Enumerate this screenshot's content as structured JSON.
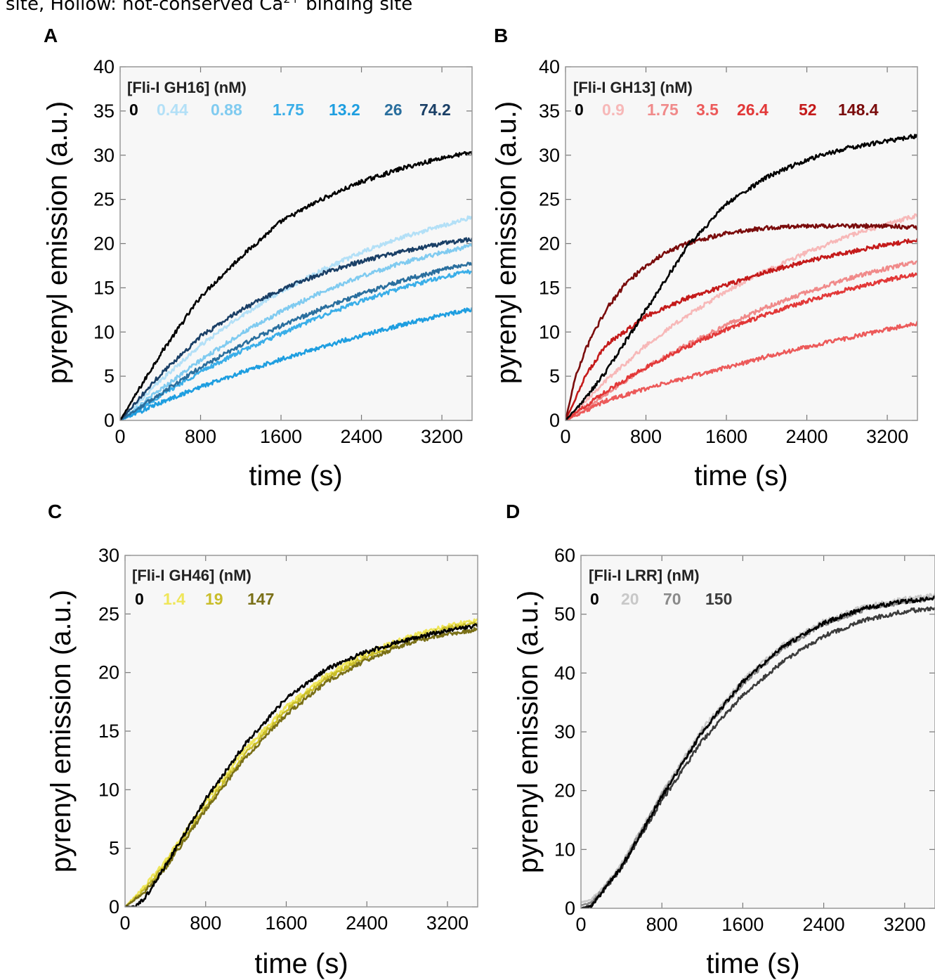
{
  "caption_fragment": "site, Hollow: not-conserved Ca",
  "caption_superscript": "2+",
  "caption_tail": " binding site",
  "colors": {
    "panel_background": "#f7f7f7",
    "frame": "#999999",
    "control_trace": "#000000"
  },
  "chart_data": [
    {
      "panel": "A",
      "type": "line",
      "xlabel": "time (s)",
      "ylabel": "pyrenyl emission (a.u.)",
      "xlim": [
        0,
        3500
      ],
      "ylim": [
        0,
        40
      ],
      "xticks": [
        0,
        800,
        1600,
        2400,
        3200
      ],
      "yticks": [
        0,
        5,
        10,
        15,
        20,
        25,
        30,
        35,
        40
      ],
      "legend_title": "[Fli-I GH16]  (nM)",
      "legend_placement": "top-left",
      "series": [
        {
          "name": "0",
          "color": "#000000",
          "x": [
            0,
            400,
            800,
            1200,
            1600,
            2000,
            2400,
            2800,
            3200,
            3500
          ],
          "y": [
            0,
            7.5,
            14,
            18.5,
            22.5,
            25,
            27,
            28.5,
            29.7,
            30.3
          ]
        },
        {
          "name": "0.44",
          "color": "#b3e0f7",
          "x": [
            0,
            400,
            800,
            1200,
            1600,
            2000,
            2400,
            2800,
            3200,
            3500
          ],
          "y": [
            0,
            4.5,
            8.5,
            11.8,
            14.6,
            17,
            19,
            20.7,
            22,
            23
          ]
        },
        {
          "name": "0.88",
          "color": "#80cbf0",
          "x": [
            0,
            400,
            800,
            1200,
            1600,
            2000,
            2400,
            2800,
            3200,
            3500
          ],
          "y": [
            0,
            3.5,
            6.8,
            9.8,
            12.3,
            14.5,
            16.3,
            17.8,
            19,
            19.8
          ]
        },
        {
          "name": "1.75",
          "color": "#3aaee8",
          "x": [
            0,
            400,
            800,
            1200,
            1600,
            2000,
            2400,
            2800,
            3200,
            3500
          ],
          "y": [
            0,
            2.8,
            5.5,
            7.8,
            9.8,
            11.8,
            13.5,
            15,
            16.2,
            16.9
          ]
        },
        {
          "name": "13.2",
          "color": "#1e9ee0",
          "x": [
            0,
            400,
            800,
            1200,
            1600,
            2000,
            2400,
            2800,
            3200,
            3500
          ],
          "y": [
            0,
            2,
            3.8,
            5.4,
            6.9,
            8.3,
            9.6,
            10.8,
            11.9,
            12.6
          ]
        },
        {
          "name": "26",
          "color": "#2a6f9e",
          "x": [
            0,
            400,
            800,
            1200,
            1600,
            2000,
            2400,
            2800,
            3200,
            3500
          ],
          "y": [
            0,
            3,
            6,
            8.5,
            10.7,
            12.6,
            14.3,
            15.8,
            17,
            17.8
          ]
        },
        {
          "name": "74.2",
          "color": "#1a3f66",
          "x": [
            0,
            400,
            800,
            1200,
            1600,
            2000,
            2400,
            2800,
            3200,
            3500
          ],
          "y": [
            0,
            5.2,
            9.5,
            12.5,
            14.8,
            16.6,
            18,
            19.1,
            20,
            20.5
          ]
        }
      ]
    },
    {
      "panel": "B",
      "type": "line",
      "xlabel": "time (s)",
      "ylabel": "pyrenyl emission (a.u.)",
      "xlim": [
        0,
        3500
      ],
      "ylim": [
        0,
        40
      ],
      "xticks": [
        0,
        800,
        1600,
        2400,
        3200
      ],
      "yticks": [
        0,
        5,
        10,
        15,
        20,
        25,
        30,
        35,
        40
      ],
      "legend_title": "[Fli-I GH13]  (nM)",
      "legend_placement": "top-left",
      "series": [
        {
          "name": "0",
          "color": "#000000",
          "x": [
            0,
            200,
            400,
            600,
            800,
            1000,
            1200,
            1600,
            2000,
            2400,
            2800,
            3200,
            3500
          ],
          "y": [
            0,
            2.5,
            5.5,
            9,
            12.5,
            16,
            19.5,
            24.5,
            27.5,
            29.5,
            30.8,
            31.6,
            32.2
          ]
        },
        {
          "name": "0.9",
          "color": "#f7b8b8",
          "x": [
            0,
            400,
            800,
            1200,
            1600,
            2000,
            2400,
            2800,
            3200,
            3500
          ],
          "y": [
            0,
            4.5,
            8.5,
            11.8,
            14.6,
            17,
            19,
            20.8,
            22.2,
            23.2
          ]
        },
        {
          "name": "1.75",
          "color": "#f08a8a",
          "x": [
            0,
            400,
            800,
            1200,
            1600,
            2000,
            2400,
            2800,
            3200,
            3500
          ],
          "y": [
            0,
            3,
            6,
            8.5,
            10.8,
            12.8,
            14.5,
            16,
            17.2,
            18
          ]
        },
        {
          "name": "3.5",
          "color": "#ec5a5a",
          "x": [
            0,
            400,
            800,
            1200,
            1600,
            2000,
            2400,
            2800,
            3200,
            3500
          ],
          "y": [
            0,
            2.2,
            3.6,
            4.8,
            6,
            7.2,
            8.3,
            9.3,
            10.3,
            11
          ]
        },
        {
          "name": "26.4",
          "color": "#e23838",
          "x": [
            0,
            400,
            800,
            1200,
            1600,
            2000,
            2400,
            2800,
            3200,
            3500
          ],
          "y": [
            0,
            3.3,
            6,
            8.3,
            10.3,
            12,
            13.5,
            14.8,
            15.9,
            16.6
          ]
        },
        {
          "name": "52",
          "color": "#c41a1a",
          "x": [
            0,
            200,
            400,
            800,
            1200,
            1600,
            2000,
            2400,
            2800,
            3200,
            3500
          ],
          "y": [
            0,
            5,
            8.5,
            11.8,
            13.8,
            15.3,
            16.8,
            18,
            19,
            19.9,
            20.4
          ]
        },
        {
          "name": "148.4",
          "color": "#7a0c0c",
          "x": [
            0,
            100,
            200,
            400,
            600,
            800,
            1000,
            1200,
            1600,
            2000,
            2400,
            2800,
            3200,
            3500
          ],
          "y": [
            0,
            5,
            8,
            12.5,
            15.5,
            17.5,
            19,
            20,
            21.2,
            21.8,
            22,
            22,
            22,
            21.8
          ]
        }
      ]
    },
    {
      "panel": "C",
      "type": "line",
      "xlabel": "time (s)",
      "ylabel": "pyrenyl emission (a.u.)",
      "xlim": [
        0,
        3500
      ],
      "ylim": [
        0,
        30
      ],
      "xticks": [
        0,
        800,
        1600,
        2400,
        3200
      ],
      "yticks": [
        0,
        5,
        10,
        15,
        20,
        25,
        30
      ],
      "legend_title": "[Fli-I GH46]  (nM)",
      "legend_placement": "top-left",
      "series": [
        {
          "name": "0",
          "color": "#000000",
          "x": [
            0,
            100,
            200,
            400,
            800,
            1200,
            1600,
            2000,
            2400,
            2800,
            3200,
            3500
          ],
          "y": [
            0,
            0,
            0.8,
            3.5,
            9.2,
            14,
            17.8,
            20.3,
            21.8,
            22.8,
            23.6,
            24
          ]
        },
        {
          "name": "1.4",
          "color": "#efe65a",
          "x": [
            0,
            200,
            400,
            800,
            1200,
            1600,
            2000,
            2400,
            2800,
            3200,
            3500
          ],
          "y": [
            0,
            1.8,
            3.9,
            9,
            13.5,
            17.1,
            19.8,
            21.7,
            23,
            24,
            24.5
          ]
        },
        {
          "name": "19",
          "color": "#c9bd2a",
          "x": [
            0,
            200,
            400,
            800,
            1200,
            1600,
            2000,
            2400,
            2800,
            3200,
            3500
          ],
          "y": [
            0,
            1.5,
            3.6,
            8.6,
            13.1,
            16.8,
            19.5,
            21.4,
            22.8,
            23.8,
            24.2
          ]
        },
        {
          "name": "147",
          "color": "#7a7018",
          "x": [
            0,
            200,
            400,
            800,
            1200,
            1600,
            2000,
            2400,
            2800,
            3200,
            3500
          ],
          "y": [
            0,
            1.3,
            3.3,
            8.3,
            12.8,
            16.4,
            19.2,
            21.1,
            22.5,
            23.3,
            23.7
          ]
        }
      ]
    },
    {
      "panel": "D",
      "type": "line",
      "xlabel": "time (s)",
      "ylabel": "pyrenyl emission (a.u.)",
      "xlim": [
        0,
        3500
      ],
      "ylim": [
        0,
        60
      ],
      "xticks": [
        0,
        800,
        1600,
        2400,
        3200
      ],
      "yticks": [
        0,
        10,
        20,
        30,
        40,
        50,
        60
      ],
      "legend_title": "[Fli-I LRR] (nM)",
      "legend_placement": "top-left",
      "series": [
        {
          "name": "0",
          "color": "#000000",
          "x": [
            0,
            100,
            200,
            400,
            800,
            1200,
            1600,
            2000,
            2400,
            2800,
            3200,
            3500
          ],
          "y": [
            0,
            0.3,
            2.5,
            7,
            19,
            30,
            38.5,
            44.5,
            48.5,
            51,
            52.2,
            52.8
          ]
        },
        {
          "name": "20",
          "color": "#c8c8c8",
          "x": [
            0,
            100,
            200,
            400,
            800,
            1200,
            1600,
            2000,
            2400,
            2800,
            3200,
            3500
          ],
          "y": [
            1,
            1.5,
            3,
            7.5,
            19.5,
            30.5,
            38.8,
            44.8,
            48.8,
            51.3,
            52.6,
            53.2
          ]
        },
        {
          "name": "70",
          "color": "#8a8a8a",
          "x": [
            0,
            100,
            200,
            400,
            800,
            1200,
            1600,
            2000,
            2400,
            2800,
            3200,
            3500
          ],
          "y": [
            0.5,
            1,
            2.8,
            7.2,
            19.2,
            30,
            38.2,
            44.3,
            48.3,
            50.8,
            52.1,
            52.7
          ]
        },
        {
          "name": "150",
          "color": "#3c3c3c",
          "x": [
            0,
            100,
            200,
            400,
            800,
            1200,
            1600,
            2000,
            2400,
            2800,
            3200,
            3500
          ],
          "y": [
            0,
            0.5,
            2.5,
            6.8,
            18.3,
            28.5,
            36.3,
            42,
            46.3,
            49,
            50.5,
            51
          ]
        }
      ]
    }
  ]
}
